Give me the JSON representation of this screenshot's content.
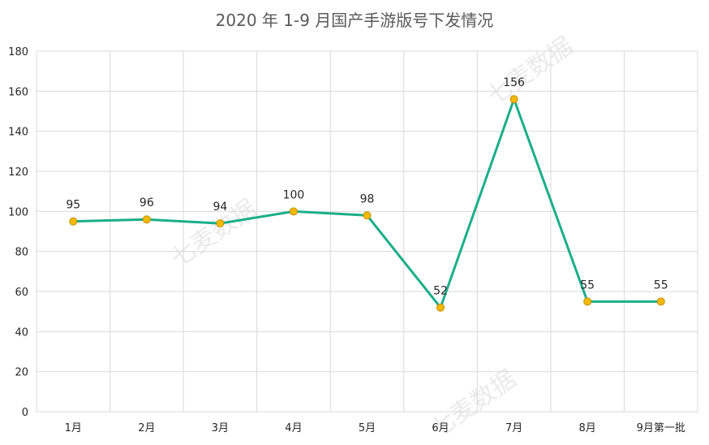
{
  "chart_data": {
    "type": "line",
    "title": "2020 年 1-9 月国产手游版号下发情况",
    "categories": [
      "1月",
      "2月",
      "3月",
      "4月",
      "5月",
      "6月",
      "7月",
      "8月",
      "9月第一批"
    ],
    "series": [
      {
        "values": [
          95,
          96,
          94,
          100,
          98,
          52,
          156,
          55,
          55
        ]
      }
    ],
    "ylim": [
      0,
      180
    ],
    "yticks": [
      0,
      20,
      40,
      60,
      80,
      100,
      120,
      140,
      160,
      180
    ],
    "xlabel": "",
    "ylabel": "",
    "grid": true,
    "data_labels": true
  },
  "watermark": {
    "text": "七麦数据"
  },
  "colors": {
    "line": "#1aae8a",
    "marker_fill": "#f5b800",
    "marker_stroke": "#c09000",
    "grid": "#d9d9d9"
  }
}
